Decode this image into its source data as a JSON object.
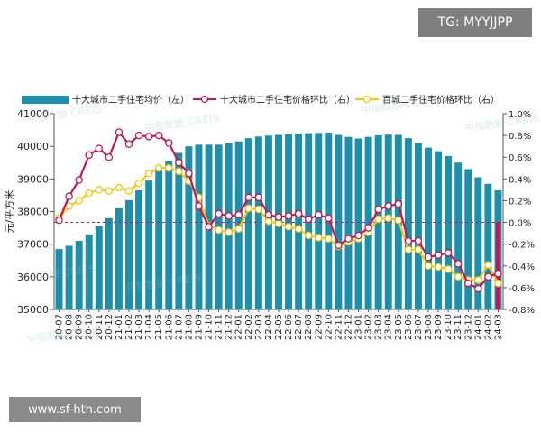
{
  "tag_label": "TG: MYYJJPP",
  "url_label": "www.sf-hth.com",
  "watermark_text": "中指数据 CREIS",
  "colors": {
    "bar": "#1e8faa",
    "line1": "#c2185b",
    "line2": "#f2c80f",
    "zero": "#c2185b",
    "marker_fill": "#ffffff"
  },
  "chart_data": {
    "type": "bar+line",
    "ylabel_left": "元/平方米",
    "legend_position": "top",
    "categories": [
      "20-07",
      "20-08",
      "20-09",
      "20-10",
      "20-11",
      "20-12",
      "21-01",
      "21-02",
      "21-03",
      "21-04",
      "21-05",
      "21-06",
      "21-07",
      "21-08",
      "21-09",
      "21-10",
      "21-11",
      "21-12",
      "22-01",
      "22-02",
      "22-03",
      "22-04",
      "22-05",
      "22-06",
      "22-07",
      "22-08",
      "22-09",
      "22-10",
      "22-11",
      "22-12",
      "23-01",
      "23-02",
      "23-03",
      "23-04",
      "23-05",
      "23-06",
      "23-07",
      "23-08",
      "23-09",
      "23-10",
      "23-11",
      "23-12",
      "24-01",
      "24-02",
      "24-03"
    ],
    "y_left": {
      "min": 35000,
      "max": 41000,
      "step": 1000,
      "ticks": [
        "35000",
        "36000",
        "37000",
        "38000",
        "39000",
        "40000",
        "41000"
      ]
    },
    "y_right": {
      "min": -0.8,
      "max": 1.0,
      "step": 0.2,
      "ticks": [
        "-0.8%",
        "-0.6%",
        "-0.4%",
        "-0.2%",
        "0.0%",
        "0.2%",
        "0.4%",
        "0.6%",
        "0.8%",
        "1.0%"
      ]
    },
    "series": [
      {
        "name": "十大城市二手住宅均价（左）",
        "type": "bar",
        "axis": "left",
        "values": [
          36850,
          36950,
          37100,
          37300,
          37550,
          37800,
          38100,
          38350,
          38650,
          38950,
          39250,
          39550,
          39800,
          40000,
          40050,
          40050,
          40050,
          40100,
          40150,
          40250,
          40300,
          40330,
          40350,
          40370,
          40390,
          40400,
          40410,
          40420,
          40350,
          40290,
          40240,
          40290,
          40340,
          40360,
          40350,
          40250,
          40100,
          39960,
          39850,
          39700,
          39500,
          39300,
          39050,
          38850,
          38650
        ]
      },
      {
        "name": "十大城市二手住宅价格环比（右）",
        "type": "line",
        "axis": "right",
        "values": [
          0.02,
          0.24,
          0.39,
          0.62,
          0.68,
          0.6,
          0.83,
          0.72,
          0.8,
          0.79,
          0.8,
          0.73,
          0.55,
          0.45,
          0.15,
          -0.04,
          0.08,
          0.06,
          0.07,
          0.23,
          0.23,
          0.07,
          0.05,
          0.06,
          0.08,
          0.03,
          0.07,
          0.04,
          -0.21,
          -0.15,
          -0.12,
          -0.05,
          0.12,
          0.15,
          0.17,
          -0.17,
          -0.17,
          -0.32,
          -0.3,
          -0.28,
          -0.38,
          -0.56,
          -0.61,
          -0.5,
          -0.47
        ]
      },
      {
        "name": "百城二手住宅价格环比（右）",
        "type": "line",
        "axis": "right",
        "values": [
          0.04,
          0.15,
          0.2,
          0.27,
          0.3,
          0.29,
          0.32,
          0.29,
          0.36,
          0.45,
          0.5,
          0.5,
          0.47,
          0.38,
          0.23,
          -0.03,
          -0.07,
          -0.09,
          -0.06,
          0.13,
          0.12,
          0.01,
          -0.01,
          -0.04,
          -0.06,
          -0.12,
          -0.14,
          -0.15,
          -0.22,
          -0.18,
          -0.15,
          -0.09,
          0.03,
          0.04,
          0.02,
          -0.25,
          -0.25,
          -0.4,
          -0.41,
          -0.43,
          -0.5,
          -0.53,
          -0.53,
          -0.39,
          -0.56
        ]
      }
    ]
  }
}
